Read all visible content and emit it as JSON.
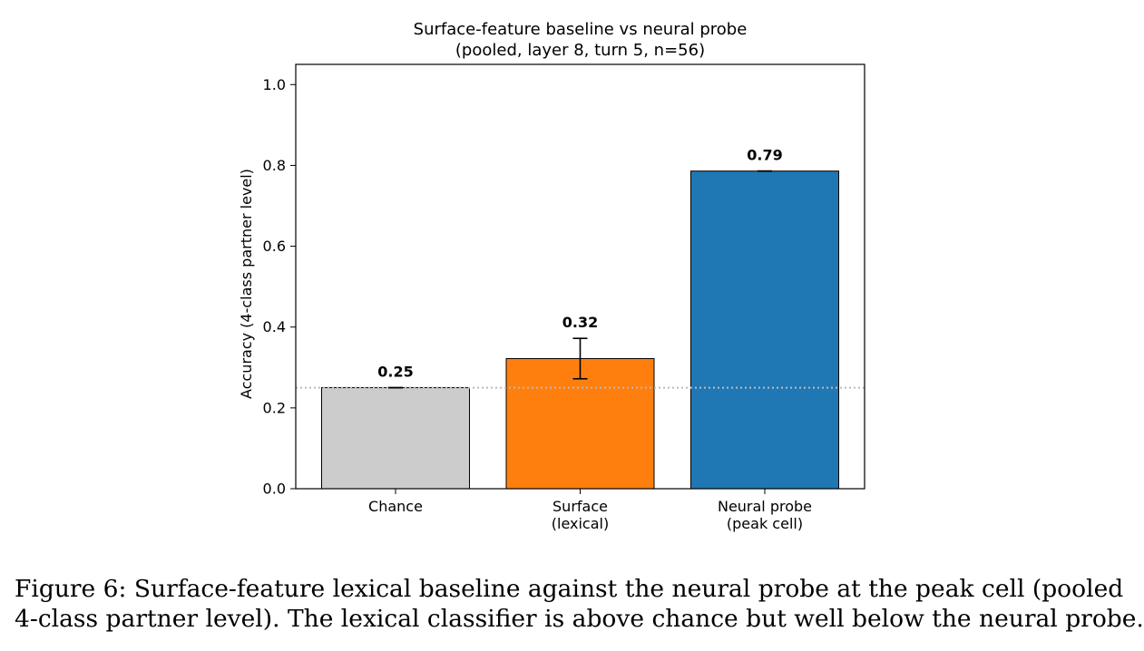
{
  "chart_data": {
    "type": "bar",
    "title": "Surface-feature baseline vs neural probe",
    "subtitle": "(pooled, layer 8, turn 5, n=56)",
    "ylabel": "Accuracy (4-class partner level)",
    "ylim": [
      0,
      1.05
    ],
    "yticks": [
      0.0,
      0.2,
      0.4,
      0.6,
      0.8,
      1.0
    ],
    "ytick_labels": [
      "0.0",
      "0.2",
      "0.4",
      "0.6",
      "0.8",
      "1.0"
    ],
    "categories": [
      [
        "Chance"
      ],
      [
        "Surface",
        "(lexical)"
      ],
      [
        "Neural probe",
        "(peak cell)"
      ]
    ],
    "values": [
      0.25,
      0.322,
      0.786
    ],
    "value_labels": [
      "0.25",
      "0.32",
      "0.79"
    ],
    "error_bars": [
      [
        0.25,
        0.25
      ],
      [
        0.272,
        0.372
      ],
      [
        0.786,
        0.786
      ]
    ],
    "colors": [
      "#cccccc",
      "#ff7f0e",
      "#1f77b4"
    ],
    "reference_line": {
      "y": 0.25,
      "style": "dotted",
      "color": "#bbbbbb"
    },
    "grid": false,
    "legend": "none"
  },
  "caption": {
    "line1": "Figure 6: Surface-feature lexical baseline against the neural probe at the peak cell (pooled",
    "line2": "4-class partner level). The lexical classifier is above chance but well below the neural probe."
  }
}
